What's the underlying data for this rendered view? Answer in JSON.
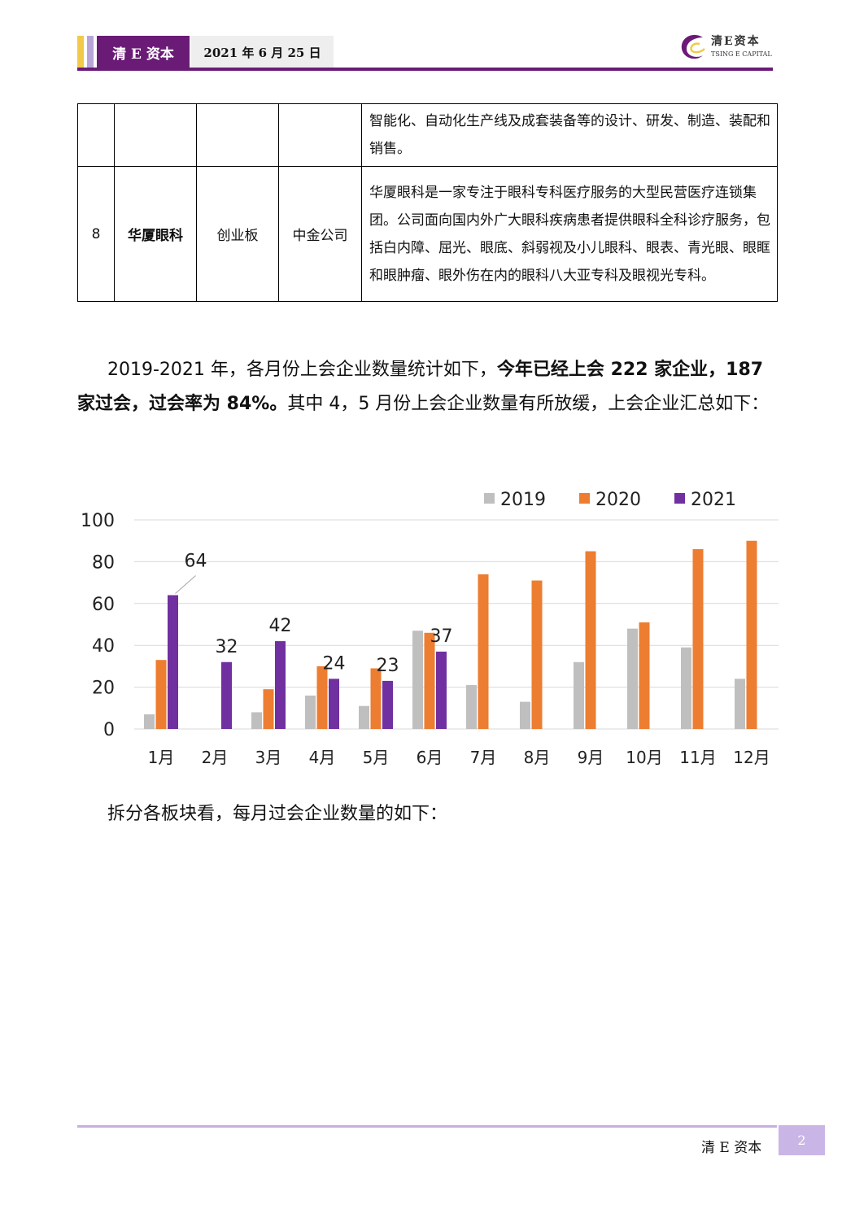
{
  "header": {
    "brand": "清 E 资本",
    "date": "2021 年 6 月 25 日",
    "logo_cn": "清E资本",
    "logo_en": "TSING E CAPITAL"
  },
  "table": {
    "rows": [
      {
        "no": "",
        "company": "",
        "board": "",
        "sponsor": "",
        "desc": "智能化、自动化生产线及成套装备等的设计、研发、制造、装配和销售。"
      },
      {
        "no": "8",
        "company": "华厦眼科",
        "board": "创业板",
        "sponsor": "中金公司",
        "desc": "华厦眼科是一家专注于眼科专科医疗服务的大型民营医疗连锁集团。公司面向国内外广大眼科疾病患者提供眼科全科诊疗服务，包括白内障、屈光、眼底、斜弱视及小儿眼科、眼表、青光眼、眼眶和眼肿瘤、眼外伤在内的眼科八大亚专科及眼视光专科。"
      }
    ]
  },
  "paragraph1": {
    "part1": "2019-2021 年，各月份上会企业数量统计如下，",
    "bold": "今年已经上会 222 家企业，187 家过会，过会率为 84%。",
    "part2": "其中 4，5 月份上会企业数量有所放缓，上会企业汇总如下："
  },
  "paragraph2": "拆分各板块看，每月过会企业数量的如下：",
  "chart_data": {
    "type": "bar",
    "categories": [
      "1月",
      "2月",
      "3月",
      "4月",
      "5月",
      "6月",
      "7月",
      "8月",
      "9月",
      "10月",
      "11月",
      "12月"
    ],
    "series": [
      {
        "name": "2019",
        "color": "#bfbfbf",
        "values": [
          7,
          0,
          8,
          16,
          11,
          47,
          21,
          13,
          32,
          48,
          39,
          24
        ]
      },
      {
        "name": "2020",
        "color": "#ed7d31",
        "values": [
          33,
          0,
          19,
          30,
          29,
          46,
          74,
          71,
          85,
          51,
          86,
          90
        ]
      },
      {
        "name": "2021",
        "color": "#7030a0",
        "values": [
          64,
          32,
          42,
          24,
          23,
          37,
          null,
          null,
          null,
          null,
          null,
          null
        ]
      }
    ],
    "data_labels_series": "2021",
    "yticks": [
      "0",
      "20",
      "40",
      "60",
      "80",
      "100"
    ],
    "ylim": [
      0,
      100
    ],
    "grid": true,
    "legend": "top-right"
  },
  "footer": {
    "brand": "清 E 资本",
    "page": "2"
  }
}
